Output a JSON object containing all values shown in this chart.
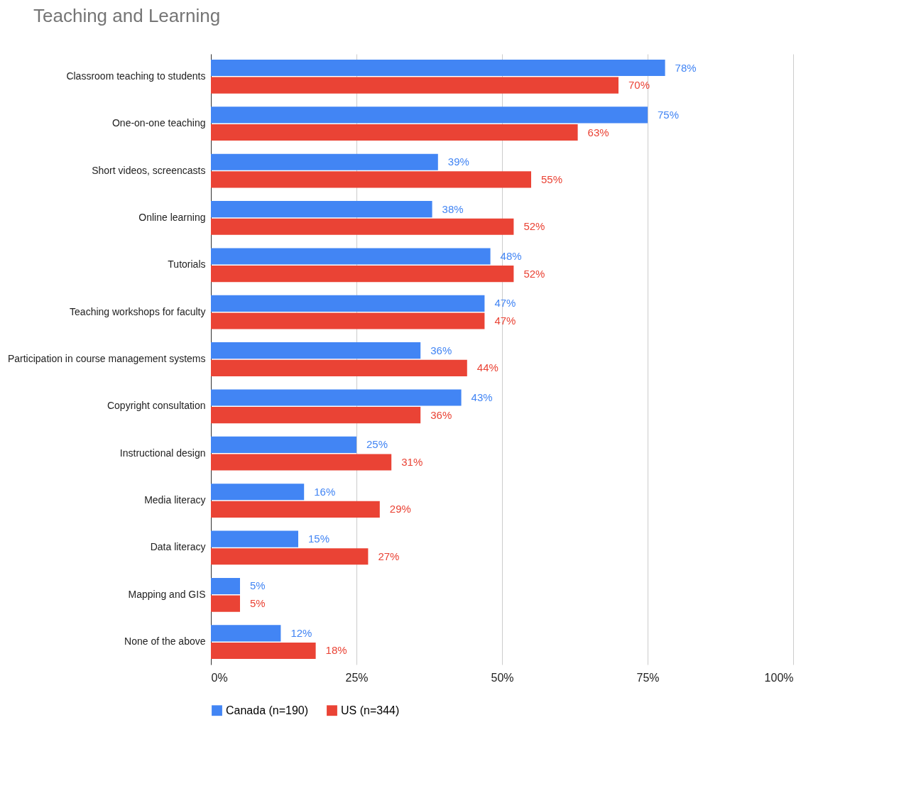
{
  "chart_data": {
    "type": "bar",
    "orientation": "horizontal",
    "title": "Teaching and Learning",
    "categories": [
      "Classroom teaching to students",
      "One-on-one teaching",
      "Short videos, screencasts",
      "Online learning",
      "Tutorials",
      "Teaching workshops for faculty",
      "Participation in course management systems",
      "Copyright consultation",
      "Instructional design",
      "Media literacy",
      "Data literacy",
      "Mapping and GIS",
      "None of the above"
    ],
    "series": [
      {
        "name": "Canada (n=190)",
        "color": "#4285f4",
        "values": [
          78,
          75,
          39,
          38,
          48,
          47,
          36,
          43,
          25,
          16,
          15,
          5,
          12
        ],
        "value_labels": [
          "78%",
          "75%",
          "39%",
          "38%",
          "48%",
          "47%",
          "36%",
          "43%",
          "25%",
          "16%",
          "15%",
          "5%",
          "12%"
        ]
      },
      {
        "name": "US (n=344)",
        "color": "#ea4335",
        "values": [
          70,
          63,
          55,
          52,
          52,
          47,
          44,
          36,
          31,
          29,
          27,
          5,
          18
        ],
        "value_labels": [
          "70%",
          "63%",
          "55%",
          "52%",
          "52%",
          "47%",
          "44%",
          "36%",
          "31%",
          "29%",
          "27%",
          "5%",
          "18%"
        ]
      }
    ],
    "xlim": [
      0,
      100
    ],
    "xticks": [
      {
        "value": 0,
        "label": "0%"
      },
      {
        "value": 25,
        "label": "25%"
      },
      {
        "value": 50,
        "label": "50%"
      },
      {
        "value": 75,
        "label": "75%"
      },
      {
        "value": 100,
        "label": "100%"
      }
    ],
    "grid": "x",
    "legend": "bottom"
  }
}
